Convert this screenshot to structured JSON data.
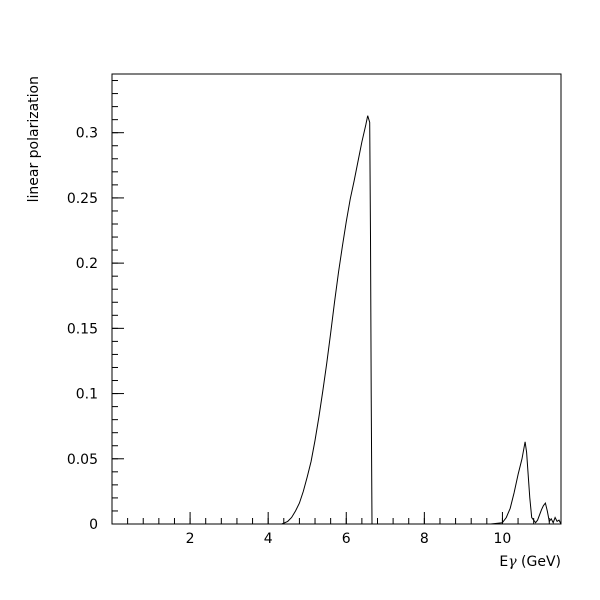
{
  "chart_data": {
    "type": "line",
    "xlabel_main": "E",
    "xlabel_symbol": "γ",
    "xlabel_unit": " (GeV)",
    "ylabel": "linear polarization",
    "xlim": [
      0,
      11.5
    ],
    "ylim": [
      0,
      0.345
    ],
    "x_ticks": [
      2,
      4,
      6,
      8,
      10
    ],
    "y_ticks": [
      0,
      0.05,
      0.1,
      0.15,
      0.2,
      0.25,
      0.3
    ],
    "x_tick_labels": [
      "2",
      "4",
      "6",
      "8",
      "10"
    ],
    "y_tick_labels": [
      "0",
      "0.05",
      "0.1",
      "0.15",
      "0.2",
      "0.25",
      "0.3"
    ],
    "x_minor_step": 0.4,
    "y_minor_step": 0.01,
    "grid": false,
    "line_color": "#000000",
    "series": [
      {
        "points": [
          [
            0.0,
            0.0
          ],
          [
            3.95,
            0.0
          ],
          [
            4.35,
            0.0
          ],
          [
            4.5,
            0.002
          ],
          [
            4.6,
            0.005
          ],
          [
            4.7,
            0.01
          ],
          [
            4.8,
            0.016
          ],
          [
            4.9,
            0.025
          ],
          [
            5.0,
            0.036
          ],
          [
            5.1,
            0.048
          ],
          [
            5.2,
            0.064
          ],
          [
            5.3,
            0.082
          ],
          [
            5.4,
            0.102
          ],
          [
            5.5,
            0.123
          ],
          [
            5.6,
            0.146
          ],
          [
            5.7,
            0.17
          ],
          [
            5.8,
            0.193
          ],
          [
            5.9,
            0.213
          ],
          [
            6.0,
            0.232
          ],
          [
            6.1,
            0.249
          ],
          [
            6.2,
            0.263
          ],
          [
            6.3,
            0.278
          ],
          [
            6.4,
            0.293
          ],
          [
            6.5,
            0.306
          ],
          [
            6.55,
            0.313
          ],
          [
            6.6,
            0.308
          ],
          [
            6.62,
            0.22
          ],
          [
            6.64,
            0.1
          ],
          [
            6.66,
            0.0
          ],
          [
            9.7,
            0.0
          ],
          [
            10.0,
            0.001
          ],
          [
            10.1,
            0.005
          ],
          [
            10.2,
            0.012
          ],
          [
            10.3,
            0.024
          ],
          [
            10.4,
            0.038
          ],
          [
            10.5,
            0.05
          ],
          [
            10.58,
            0.063
          ],
          [
            10.62,
            0.055
          ],
          [
            10.7,
            0.02
          ],
          [
            10.75,
            0.005
          ],
          [
            10.85,
            0.001
          ],
          [
            10.9,
            0.003
          ],
          [
            11.0,
            0.011
          ],
          [
            11.05,
            0.014
          ],
          [
            11.1,
            0.016
          ],
          [
            11.15,
            0.01
          ],
          [
            11.2,
            0.002
          ],
          [
            11.25,
            0.004
          ],
          [
            11.3,
            0.001
          ],
          [
            11.35,
            0.005
          ],
          [
            11.4,
            0.002
          ],
          [
            11.45,
            0.003
          ],
          [
            11.5,
            0.0
          ]
        ]
      }
    ]
  }
}
